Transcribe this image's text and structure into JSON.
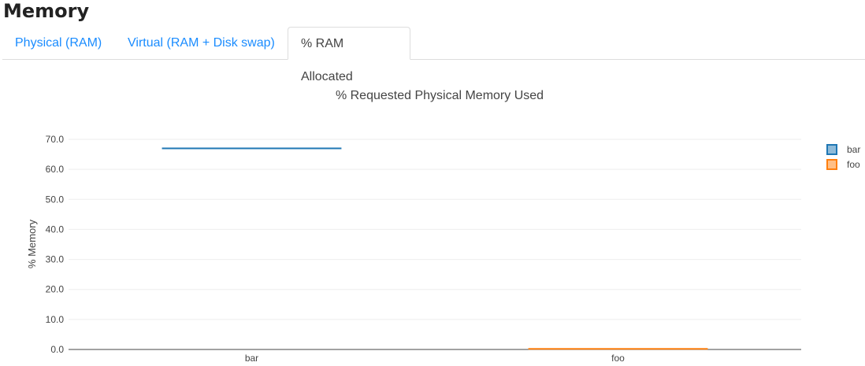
{
  "page_title": "Memory",
  "tabs": [
    {
      "label": "Physical (RAM)"
    },
    {
      "label": "Virtual (RAM + Disk swap)"
    },
    {
      "label": "% RAM Allocated",
      "active": true
    }
  ],
  "chart_data": {
    "type": "box",
    "title": "% Requested Physical Memory Used",
    "xlabel": "",
    "ylabel": "% Memory",
    "ylim": [
      0,
      70
    ],
    "yticks": [
      "0.0",
      "10.0",
      "20.0",
      "30.0",
      "40.0",
      "50.0",
      "60.0",
      "70.0"
    ],
    "categories": [
      "bar",
      "foo"
    ],
    "grid": true,
    "legend_position": "top-right",
    "series": [
      {
        "name": "bar",
        "category": "bar",
        "value": 67.0,
        "color": "#1f77b4",
        "fill": "#8fbbd9"
      },
      {
        "name": "foo",
        "category": "foo",
        "value": 0.2,
        "color": "#ff7f0e",
        "fill": "#ffbf86"
      }
    ]
  }
}
